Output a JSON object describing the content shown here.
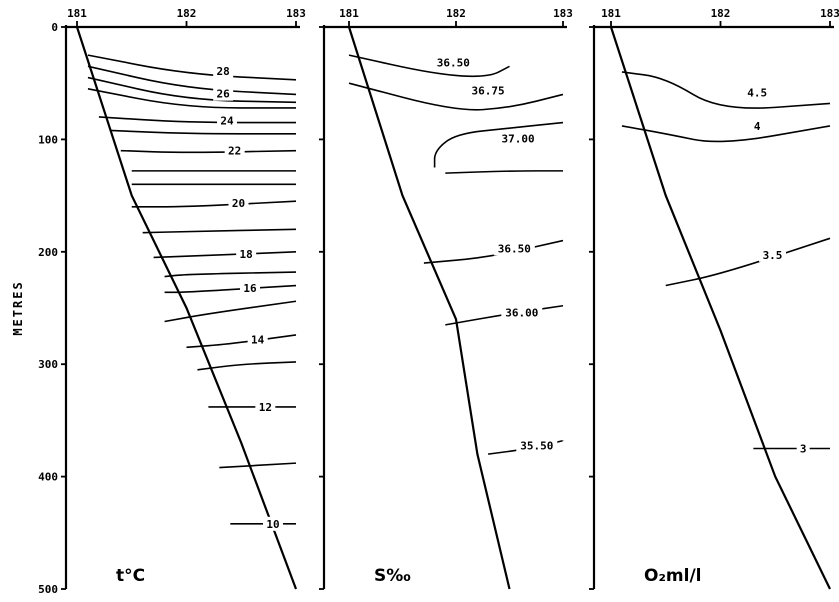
{
  "chart_data": {
    "type": "line",
    "ylabel": "METRES",
    "y_axis": {
      "min": 0,
      "max": 500,
      "inverted": true,
      "ticks": [
        0,
        100,
        200,
        300,
        400,
        500
      ]
    },
    "x_axis": {
      "min": 181,
      "max": 183,
      "position": "top",
      "ticks": [
        "181",
        "182",
        "183"
      ]
    },
    "panels": [
      {
        "title": "t°C",
        "bottom_profile": [
          [
            181.0,
            0
          ],
          [
            181.5,
            150
          ],
          [
            182.0,
            250
          ],
          [
            182.5,
            370
          ],
          [
            183.0,
            500
          ]
        ],
        "contours": [
          {
            "label": "28",
            "points": [
              [
                181.1,
                25
              ],
              [
                182.0,
                42
              ],
              [
                183.0,
                47
              ]
            ]
          },
          {
            "label": "",
            "points": [
              [
                181.1,
                35
              ],
              [
                182.0,
                55
              ],
              [
                183.0,
                60
              ]
            ]
          },
          {
            "label": "26",
            "points": [
              [
                181.1,
                45
              ],
              [
                182.0,
                65
              ],
              [
                183.0,
                67
              ]
            ]
          },
          {
            "label": "",
            "points": [
              [
                181.1,
                55
              ],
              [
                182.0,
                72
              ],
              [
                183.0,
                72
              ]
            ]
          },
          {
            "label": "24",
            "points": [
              [
                181.2,
                80
              ],
              [
                182.0,
                85
              ],
              [
                183.0,
                85
              ]
            ]
          },
          {
            "label": "",
            "points": [
              [
                181.3,
                92
              ],
              [
                182.0,
                95
              ],
              [
                183.0,
                95
              ]
            ]
          },
          {
            "label": "22",
            "points": [
              [
                181.4,
                110
              ],
              [
                182.0,
                112
              ],
              [
                183.0,
                110
              ]
            ]
          },
          {
            "label": "",
            "points": [
              [
                181.5,
                128
              ],
              [
                182.0,
                128
              ],
              [
                183.0,
                128
              ]
            ]
          },
          {
            "label": "",
            "points": [
              [
                181.5,
                140
              ],
              [
                182.0,
                140
              ],
              [
                183.0,
                140
              ]
            ]
          },
          {
            "label": "20",
            "points": [
              [
                181.5,
                160
              ],
              [
                182.0,
                160
              ],
              [
                183.0,
                155
              ]
            ]
          },
          {
            "label": "",
            "points": [
              [
                181.6,
                183
              ],
              [
                182.0,
                182
              ],
              [
                183.0,
                180
              ]
            ]
          },
          {
            "label": "18",
            "points": [
              [
                181.7,
                205
              ],
              [
                182.0,
                204
              ],
              [
                183.0,
                200
              ]
            ]
          },
          {
            "label": "",
            "points": [
              [
                181.8,
                222
              ],
              [
                182.0,
                220
              ],
              [
                183.0,
                218
              ]
            ]
          },
          {
            "label": "16",
            "points": [
              [
                181.8,
                236
              ],
              [
                182.0,
                236
              ],
              [
                183.0,
                230
              ]
            ]
          },
          {
            "label": "",
            "points": [
              [
                181.8,
                262
              ],
              [
                182.2,
                255
              ],
              [
                183.0,
                244
              ]
            ]
          },
          {
            "label": "14",
            "points": [
              [
                182.0,
                285
              ],
              [
                182.4,
                282
              ],
              [
                183.0,
                274
              ]
            ]
          },
          {
            "label": "",
            "points": [
              [
                182.1,
                305
              ],
              [
                182.5,
                300
              ],
              [
                183.0,
                298
              ]
            ]
          },
          {
            "label": "12",
            "points": [
              [
                182.2,
                338
              ],
              [
                183.0,
                338
              ]
            ]
          },
          {
            "label": "",
            "points": [
              [
                182.3,
                392
              ],
              [
                183.0,
                388
              ]
            ]
          },
          {
            "label": "10",
            "points": [
              [
                182.4,
                442
              ],
              [
                183.0,
                442
              ]
            ]
          }
        ]
      },
      {
        "title": "S‰",
        "bottom_profile": [
          [
            181.0,
            0
          ],
          [
            181.5,
            150
          ],
          [
            182.0,
            260
          ],
          [
            182.2,
            380
          ],
          [
            182.5,
            500
          ]
        ],
        "contours": [
          {
            "label": "36.50",
            "points": [
              [
                181.0,
                25
              ],
              [
                181.8,
                42
              ],
              [
                182.3,
                45
              ],
              [
                182.5,
                35
              ]
            ]
          },
          {
            "label": "36.75",
            "points": [
              [
                181.0,
                50
              ],
              [
                182.0,
                75
              ],
              [
                182.5,
                72
              ],
              [
                183.0,
                60
              ]
            ]
          },
          {
            "label": "37.00",
            "points": [
              [
                181.8,
                125
              ],
              [
                181.8,
                110
              ],
              [
                182.0,
                95
              ],
              [
                182.5,
                90
              ],
              [
                183.0,
                85
              ]
            ]
          },
          {
            "label": "",
            "points": [
              [
                181.9,
                130
              ],
              [
                182.5,
                128
              ],
              [
                183.0,
                128
              ]
            ]
          },
          {
            "label": "36.50",
            "points": [
              [
                181.7,
                210
              ],
              [
                182.3,
                205
              ],
              [
                183.0,
                190
              ]
            ]
          },
          {
            "label": "36.00",
            "points": [
              [
                181.9,
                265
              ],
              [
                182.5,
                255
              ],
              [
                183.0,
                248
              ]
            ]
          },
          {
            "label": "35.50",
            "points": [
              [
                182.3,
                380
              ],
              [
                182.7,
                375
              ],
              [
                183.0,
                368
              ]
            ]
          }
        ]
      },
      {
        "title": "O₂ml/l",
        "bottom_profile": [
          [
            181.0,
            0
          ],
          [
            181.5,
            150
          ],
          [
            182.0,
            270
          ],
          [
            182.5,
            400
          ],
          [
            183.0,
            500
          ]
        ],
        "contours": [
          {
            "label": "4.5",
            "points": [
              [
                181.1,
                40
              ],
              [
                181.5,
                45
              ],
              [
                182.0,
                75
              ],
              [
                183.0,
                68
              ]
            ]
          },
          {
            "label": "4",
            "points": [
              [
                181.1,
                88
              ],
              [
                181.5,
                95
              ],
              [
                182.0,
                105
              ],
              [
                183.0,
                88
              ]
            ]
          },
          {
            "label": "3.5",
            "points": [
              [
                181.5,
                230
              ],
              [
                182.0,
                220
              ],
              [
                183.0,
                188
              ]
            ]
          },
          {
            "label": "3",
            "points": [
              [
                182.3,
                375
              ],
              [
                183.0,
                375
              ]
            ]
          }
        ]
      }
    ]
  }
}
